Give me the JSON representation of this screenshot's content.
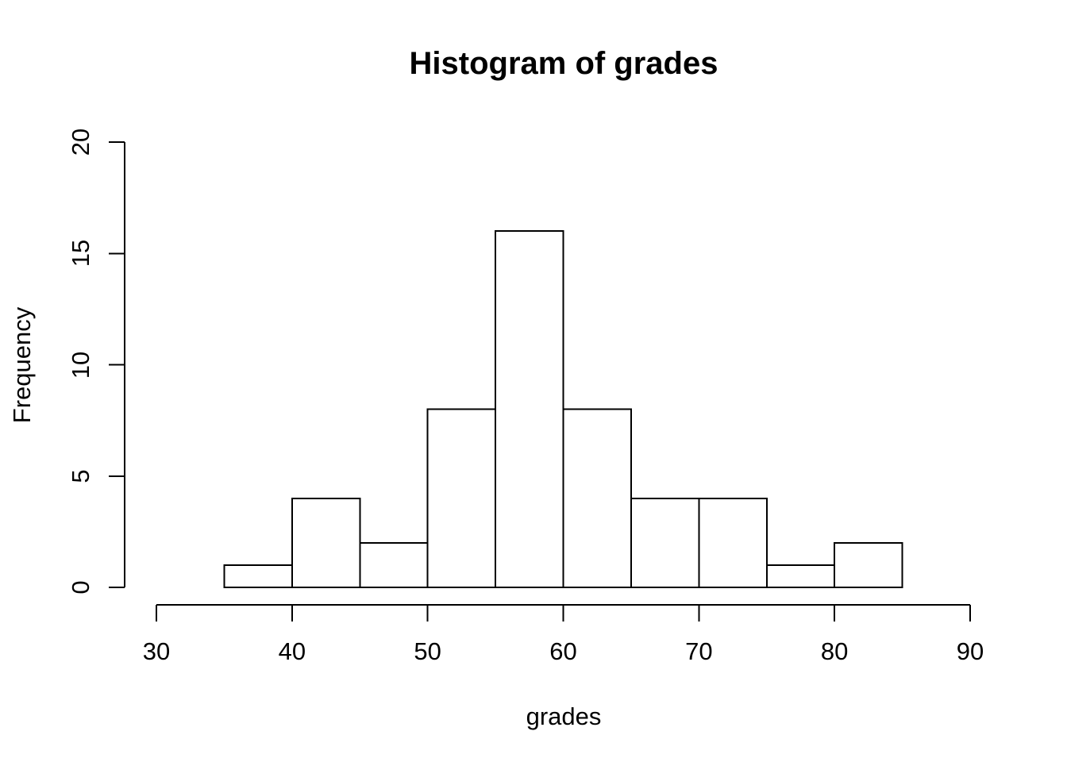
{
  "chart_data": {
    "type": "histogram",
    "title": "Histogram of grades",
    "xlabel": "grades",
    "ylabel": "Frequency",
    "bin_edges": [
      35,
      40,
      45,
      50,
      55,
      60,
      65,
      70,
      75,
      80,
      85
    ],
    "counts": [
      1,
      4,
      2,
      8,
      16,
      8,
      4,
      4,
      1,
      2
    ],
    "xlim": [
      30,
      90
    ],
    "ylim": [
      0,
      20
    ],
    "x_tick_values": [
      30,
      40,
      50,
      60,
      70,
      80,
      90
    ],
    "x_tick_labels": [
      "30",
      "40",
      "50",
      "60",
      "70",
      "80",
      "90"
    ],
    "y_tick_values": [
      0,
      5,
      10,
      15,
      20
    ],
    "y_tick_labels": [
      "0",
      "5",
      "10",
      "15",
      "20"
    ],
    "grid": false,
    "legend": "none",
    "colors": {
      "bar_fill": "#ffffff",
      "bar_border": "#000000",
      "axis": "#000000",
      "text": "#000000",
      "background": "#ffffff"
    }
  }
}
